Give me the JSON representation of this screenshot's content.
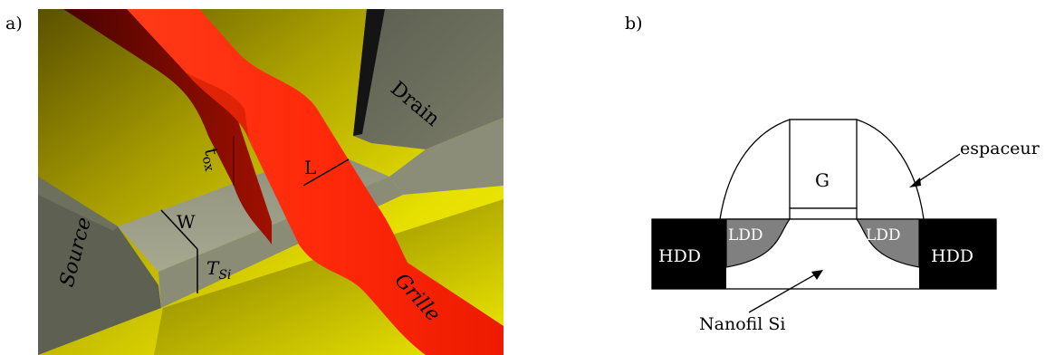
{
  "panel_a": {
    "tag": "a)",
    "labels": {
      "drain": "Drain",
      "source": "Source",
      "grille": "Grille",
      "L": "L",
      "W": "W",
      "tsi": "T",
      "tsi_sub": "Si",
      "tox": "t",
      "tox_sub": "ox"
    },
    "colors": {
      "substrate_yellow": "#e6df00",
      "substrate_dark": "#4c4400",
      "gate_red": "#ff2a0a",
      "gate_dark": "#6a0600",
      "grey_light": "#9a9c86",
      "grey_dark": "#55584a"
    }
  },
  "panel_b": {
    "tag": "b)",
    "labels": {
      "gate": "G",
      "hdd_left": "HDD",
      "hdd_right": "HDD",
      "ldd_left": "LDD",
      "ldd_right": "LDD",
      "spacer": "espaceur",
      "nanowire": "Nanofil Si"
    },
    "colors": {
      "hdd_fill": "#000000",
      "ldd_fill": "#808080",
      "line": "#000000"
    }
  }
}
